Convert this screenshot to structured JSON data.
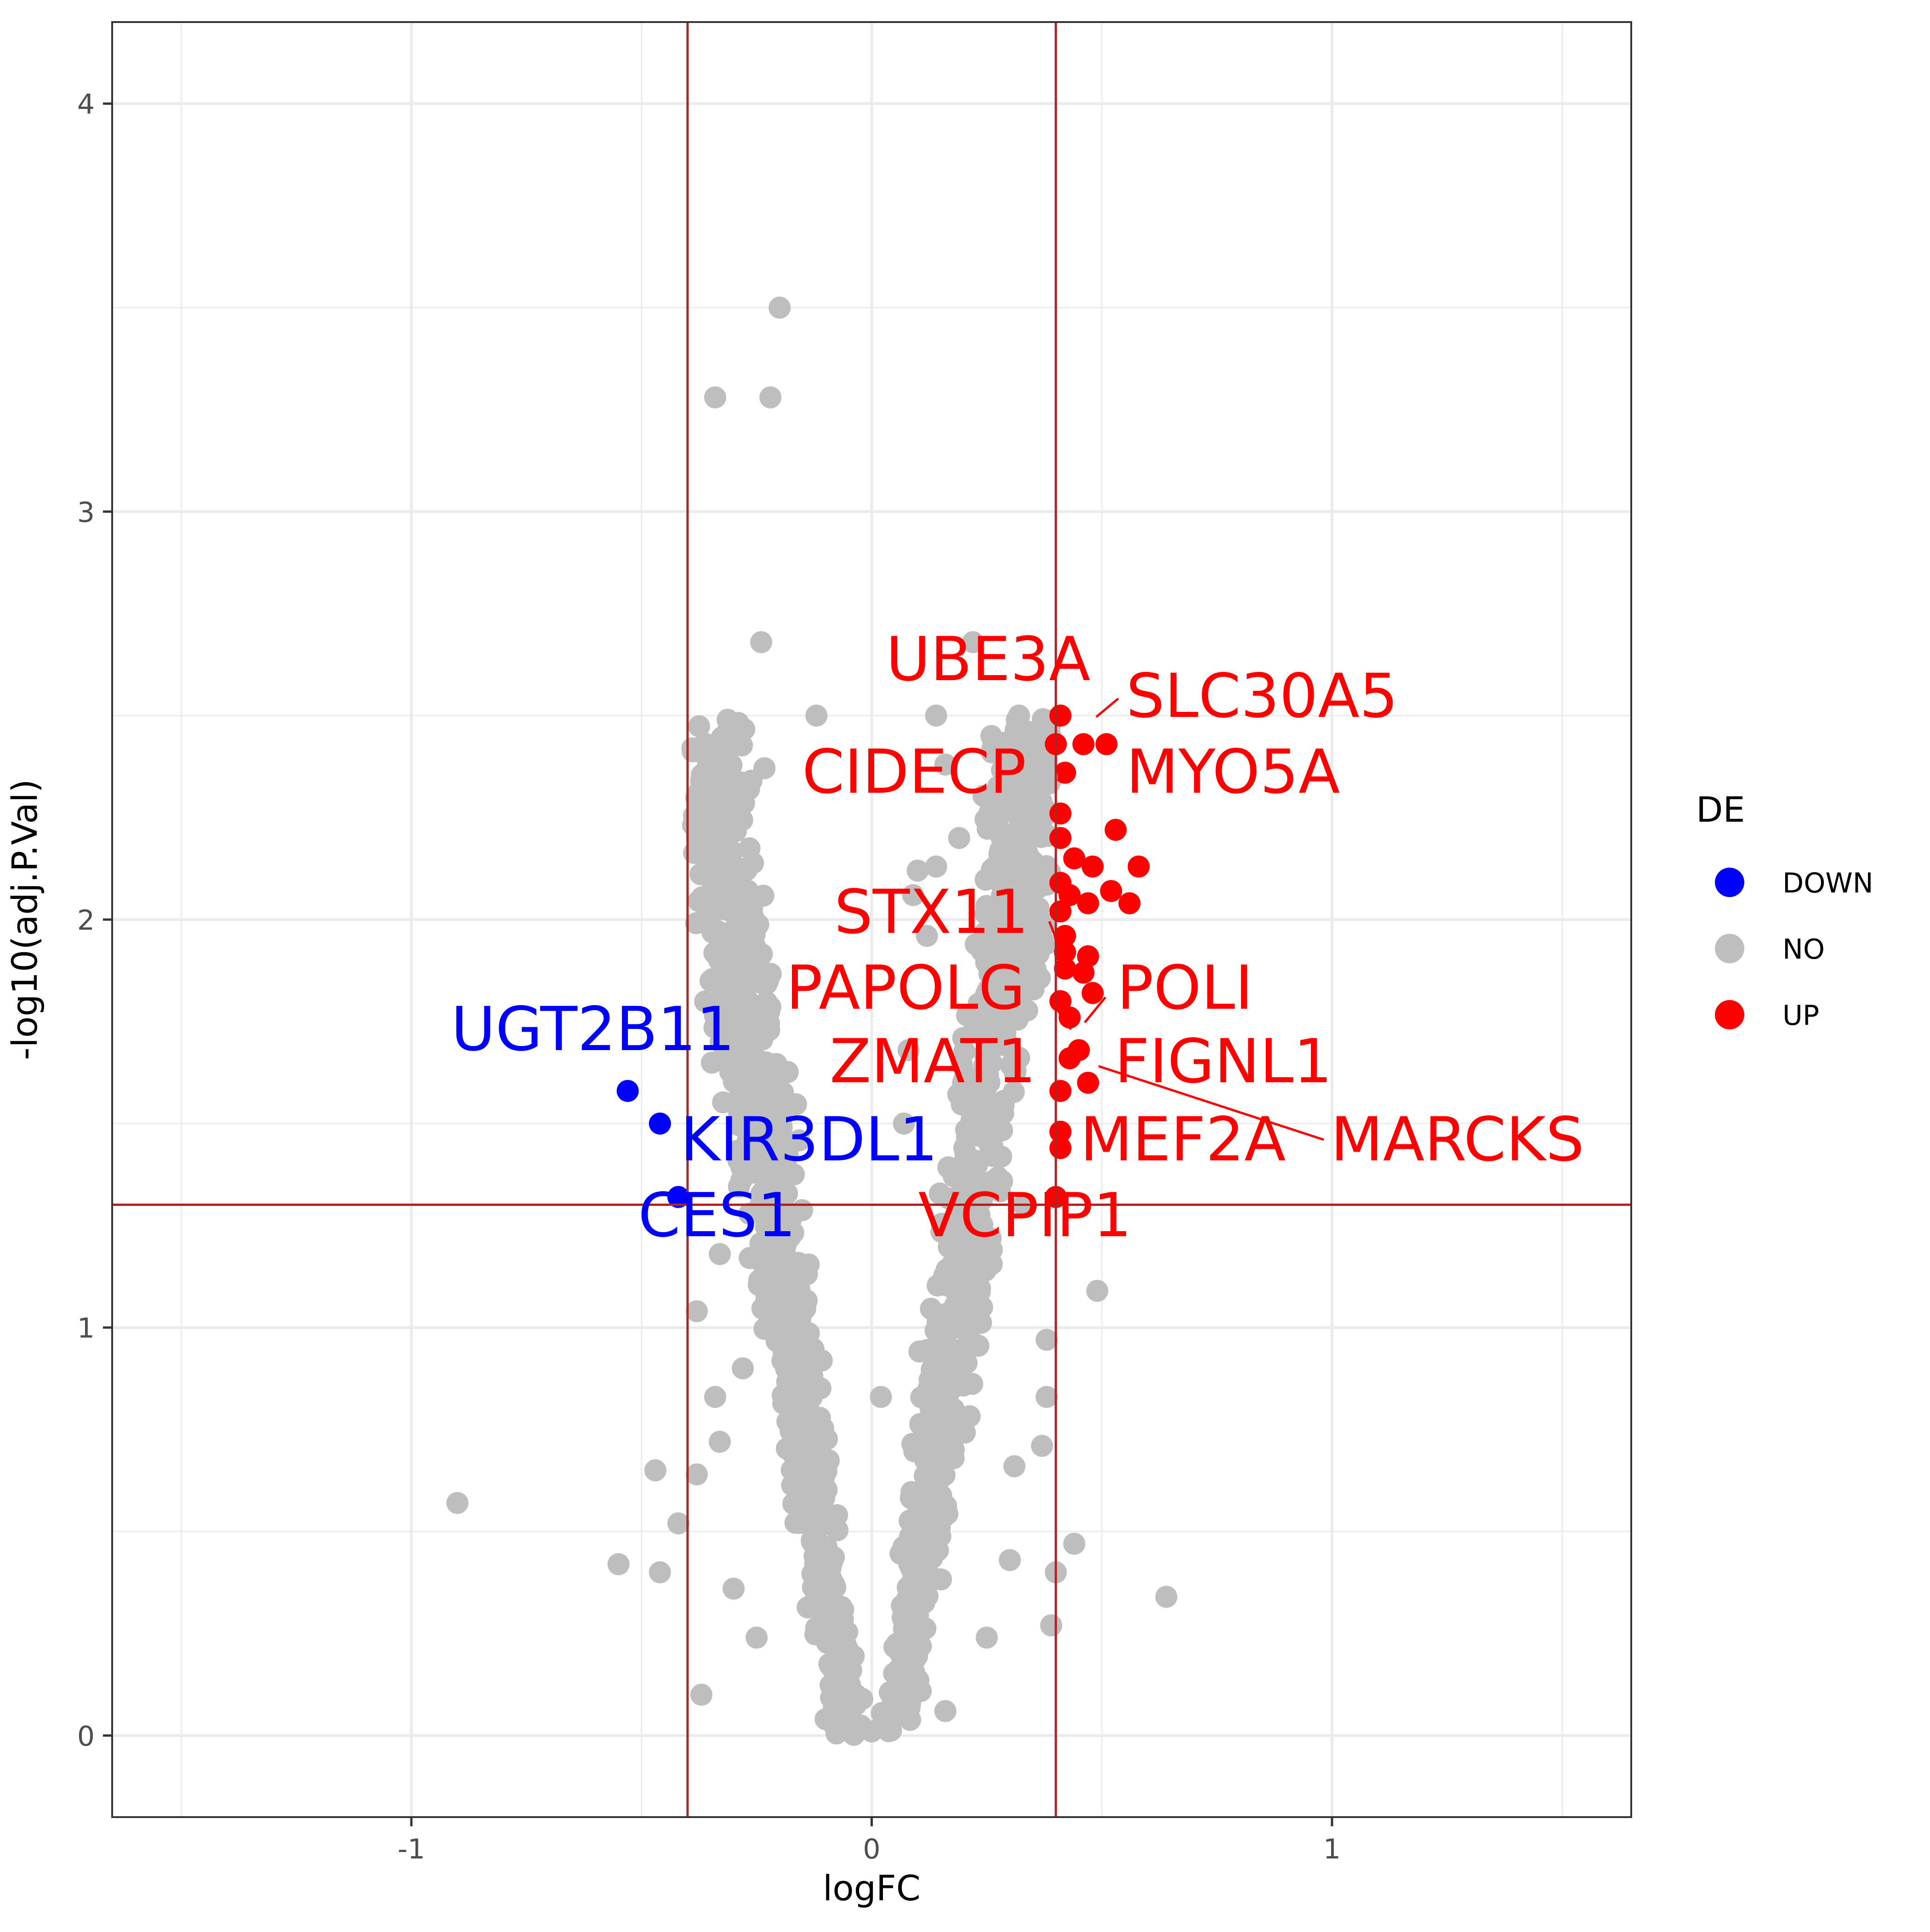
{
  "chart_data": {
    "type": "scatter",
    "title": "",
    "xlabel": "logFC",
    "ylabel": "-log10(adj.P.Val)",
    "xlim": [
      -1.65,
      1.65
    ],
    "ylim": [
      -0.2,
      4.2
    ],
    "x_ticks": [
      -1,
      0,
      1
    ],
    "x_tick_labels": [
      "-1",
      "0",
      "1"
    ],
    "y_ticks": [
      0,
      1,
      2,
      3,
      4
    ],
    "y_tick_labels": [
      "0",
      "1",
      "2",
      "3",
      "4"
    ],
    "grid": true,
    "thresholds": {
      "logFC": [
        -0.4,
        0.4
      ],
      "neg_log10_p": 1.301
    },
    "threshold_color": "#b22222",
    "legend": {
      "title": "DE",
      "position": "right",
      "entries": [
        {
          "label": "DOWN",
          "color": "#0000ff"
        },
        {
          "label": "NO",
          "color": "#bebebe"
        },
        {
          "label": "UP",
          "color": "#ff0000"
        }
      ]
    },
    "series": [
      {
        "name": "DOWN",
        "color": "#0000ff",
        "points": [
          {
            "x": -0.53,
            "y": 1.58,
            "label": "UGT2B11"
          },
          {
            "x": -0.46,
            "y": 1.5,
            "label": "KIR3DL1"
          },
          {
            "x": -0.42,
            "y": 1.32,
            "label": "CES1"
          }
        ]
      },
      {
        "name": "UP",
        "color": "#ff0000",
        "points": [
          {
            "x": 0.41,
            "y": 2.5,
            "label": "UBE3A"
          },
          {
            "x": 0.46,
            "y": 2.43,
            "label": "SLC30A5"
          },
          {
            "x": 0.51,
            "y": 2.43
          },
          {
            "x": 0.4,
            "y": 2.43
          },
          {
            "x": 0.42,
            "y": 2.36,
            "label": "CIDECP"
          },
          {
            "x": 0.53,
            "y": 2.22,
            "label": "MYO5A"
          },
          {
            "x": 0.41,
            "y": 2.26
          },
          {
            "x": 0.41,
            "y": 2.2
          },
          {
            "x": 0.44,
            "y": 2.15
          },
          {
            "x": 0.48,
            "y": 2.13
          },
          {
            "x": 0.58,
            "y": 2.13
          },
          {
            "x": 0.52,
            "y": 2.07
          },
          {
            "x": 0.56,
            "y": 2.04
          },
          {
            "x": 0.47,
            "y": 2.04
          },
          {
            "x": 0.41,
            "y": 2.09
          },
          {
            "x": 0.43,
            "y": 2.06
          },
          {
            "x": 0.41,
            "y": 2.02
          },
          {
            "x": 0.42,
            "y": 1.96
          },
          {
            "x": 0.42,
            "y": 1.92,
            "label": "STX11"
          },
          {
            "x": 0.47,
            "y": 1.91
          },
          {
            "x": 0.42,
            "y": 1.88
          },
          {
            "x": 0.46,
            "y": 1.87
          },
          {
            "x": 0.48,
            "y": 1.82
          },
          {
            "x": 0.41,
            "y": 1.8
          },
          {
            "x": 0.43,
            "y": 1.76,
            "label": "PAPOLG"
          },
          {
            "x": 0.45,
            "y": 1.68,
            "label": "POLI"
          },
          {
            "x": 0.43,
            "y": 1.66,
            "label": "ZMAT1"
          },
          {
            "x": 0.47,
            "y": 1.6,
            "label": "FIGNL1"
          },
          {
            "x": 0.41,
            "y": 1.58
          },
          {
            "x": 0.41,
            "y": 1.48,
            "label": "MEF2A"
          },
          {
            "x": 0.41,
            "y": 1.44,
            "label": "MARCKS"
          },
          {
            "x": 0.4,
            "y": 1.32,
            "label": "VCPIP1"
          }
        ]
      },
      {
        "name": "NO",
        "color": "#bebebe",
        "points": [
          {
            "x": -0.2,
            "y": 3.5
          },
          {
            "x": -0.34,
            "y": 3.28
          },
          {
            "x": -0.22,
            "y": 3.28
          },
          {
            "x": -0.24,
            "y": 2.68
          },
          {
            "x": 0.22,
            "y": 2.68
          },
          {
            "x": -0.12,
            "y": 2.5
          },
          {
            "x": 0.14,
            "y": 2.5
          },
          {
            "x": 0.32,
            "y": 2.5
          },
          {
            "x": -0.36,
            "y": 2.43
          },
          {
            "x": 0.26,
            "y": 2.45
          },
          {
            "x": 0.32,
            "y": 2.43
          },
          {
            "x": 0.16,
            "y": 2.38
          },
          {
            "x": -0.36,
            "y": 2.3
          },
          {
            "x": 0.38,
            "y": 2.35
          },
          {
            "x": -0.34,
            "y": 2.2
          },
          {
            "x": 0.19,
            "y": 2.2
          },
          {
            "x": 0.32,
            "y": 2.2
          },
          {
            "x": 0.1,
            "y": 2.12
          },
          {
            "x": 0.14,
            "y": 2.13
          },
          {
            "x": 0.09,
            "y": 2.06
          },
          {
            "x": -0.34,
            "y": 2.06
          },
          {
            "x": -0.33,
            "y": 1.95
          },
          {
            "x": -0.28,
            "y": 1.9
          },
          {
            "x": 0.12,
            "y": 1.96
          },
          {
            "x": -0.35,
            "y": 1.85
          },
          {
            "x": -0.3,
            "y": 1.8
          },
          {
            "x": 0.08,
            "y": 1.68
          },
          {
            "x": -0.23,
            "y": 1.65
          },
          {
            "x": -0.3,
            "y": 1.55
          },
          {
            "x": 0.07,
            "y": 1.5
          },
          {
            "x": -0.2,
            "y": 1.4
          },
          {
            "x": 0.33,
            "y": 1.3
          },
          {
            "x": -0.33,
            "y": 1.18
          },
          {
            "x": 0.49,
            "y": 1.09
          },
          {
            "x": -0.38,
            "y": 1.04
          },
          {
            "x": 0.38,
            "y": 0.97
          },
          {
            "x": -0.28,
            "y": 0.9
          },
          {
            "x": 0.38,
            "y": 0.83
          },
          {
            "x": -0.34,
            "y": 0.83
          },
          {
            "x": 0.02,
            "y": 0.83
          },
          {
            "x": 0.37,
            "y": 0.71
          },
          {
            "x": -0.33,
            "y": 0.72
          },
          {
            "x": 0.31,
            "y": 0.66
          },
          {
            "x": -0.47,
            "y": 0.65
          },
          {
            "x": -0.38,
            "y": 0.64
          },
          {
            "x": -0.9,
            "y": 0.57
          },
          {
            "x": -0.42,
            "y": 0.52
          },
          {
            "x": 0.44,
            "y": 0.47
          },
          {
            "x": -0.55,
            "y": 0.42
          },
          {
            "x": -0.46,
            "y": 0.4
          },
          {
            "x": 0.4,
            "y": 0.4
          },
          {
            "x": 0.3,
            "y": 0.43
          },
          {
            "x": -0.3,
            "y": 0.36
          },
          {
            "x": 0.64,
            "y": 0.34
          },
          {
            "x": 0.39,
            "y": 0.27
          },
          {
            "x": -0.25,
            "y": 0.24
          },
          {
            "x": 0.25,
            "y": 0.24
          },
          {
            "x": -0.37,
            "y": 0.1
          },
          {
            "x": 0.16,
            "y": 0.06
          },
          {
            "x": -0.1,
            "y": 0.04
          },
          {
            "x": 0.0,
            "y": 0.01
          }
        ],
        "dense_cloud_note": "NO points form a V-shaped dense band centred on logFC 0, from y 0 up to about y 2.5, within |logFC| < 0.4"
      }
    ]
  }
}
